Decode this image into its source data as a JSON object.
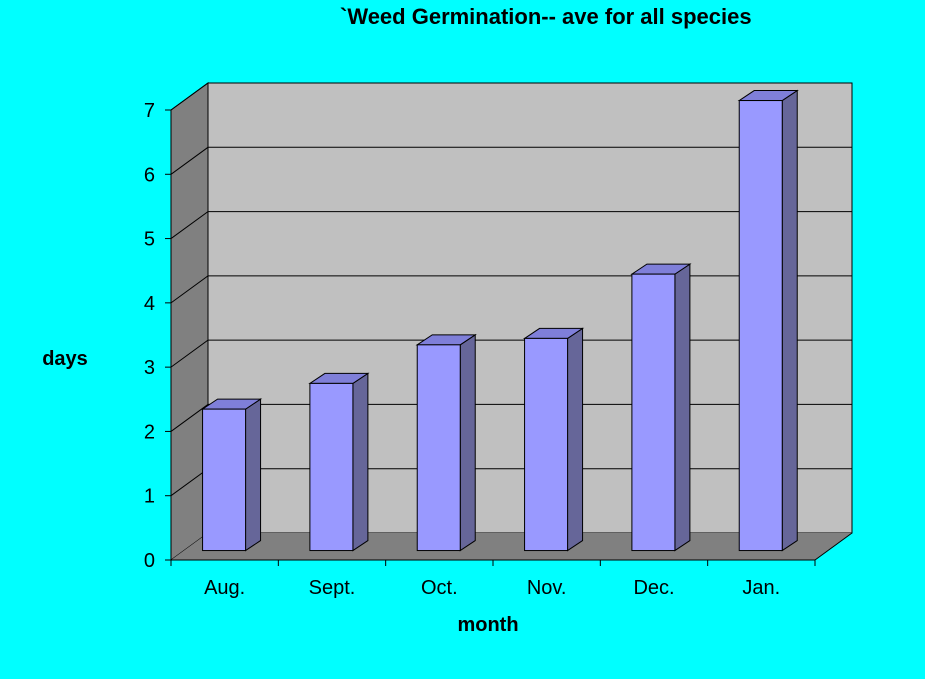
{
  "chart_data": {
    "type": "bar",
    "title": "`Weed Germination-- ave for all species",
    "xlabel": "month",
    "ylabel": "days",
    "categories": [
      "Aug.",
      "Sept.",
      "Oct.",
      "Nov.",
      "Dec.",
      "Jan."
    ],
    "values": [
      2.2,
      2.6,
      3.2,
      3.3,
      4.3,
      7.0
    ],
    "ylim": [
      0,
      7
    ],
    "yticks": [
      0,
      1,
      2,
      3,
      4,
      5,
      6,
      7
    ],
    "grid": true,
    "legend": "none",
    "style": "3d"
  },
  "colors": {
    "background": "#00FFFF",
    "wall": "#C0C0C0",
    "side_wall": "#808080",
    "floor": "#808080",
    "bar_front": "#9999FF",
    "bar_side": "#666699",
    "bar_top": "#7F7FD9"
  }
}
